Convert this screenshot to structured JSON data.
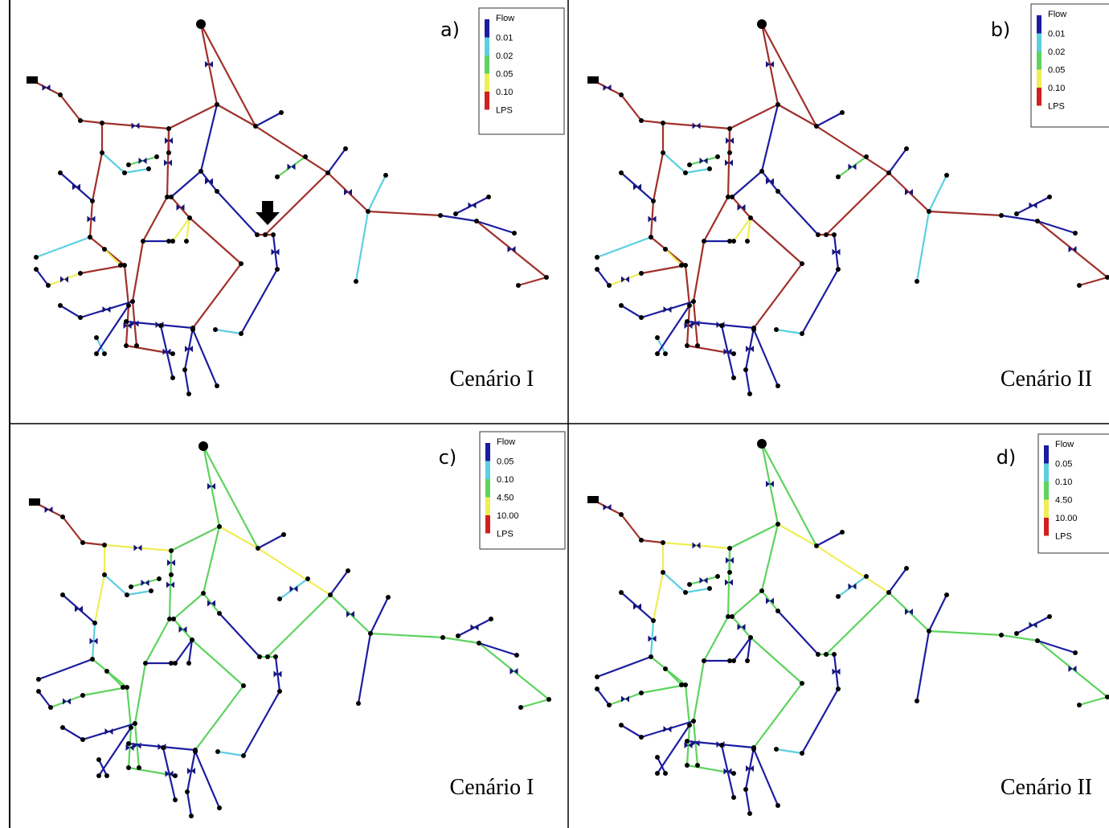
{
  "panels": [
    {
      "label": "a)",
      "legend": {
        "title": "Flow",
        "items": [
          "0.01",
          "0.02",
          "0.05",
          "0.10"
        ],
        "unit": "LPS"
      },
      "scenario": "Cenário I"
    },
    {
      "label": "b)",
      "legend": {
        "title": "Flow",
        "items": [
          "0.01",
          "0.02",
          "0.05",
          "0.10"
        ],
        "unit": "LPS"
      },
      "scenario": "Cenário II"
    },
    {
      "label": "c)",
      "legend": {
        "title": "Flow",
        "items": [
          "0.05",
          "0.10",
          "4.50",
          "10.00"
        ],
        "unit": "LPS"
      },
      "scenario": "Cenário I"
    },
    {
      "label": "d)",
      "legend": {
        "title": "Flow",
        "items": [
          "0.05",
          "0.10",
          "4.50",
          "10.00"
        ],
        "unit": "LPS"
      },
      "scenario": "Cenário II"
    }
  ]
}
